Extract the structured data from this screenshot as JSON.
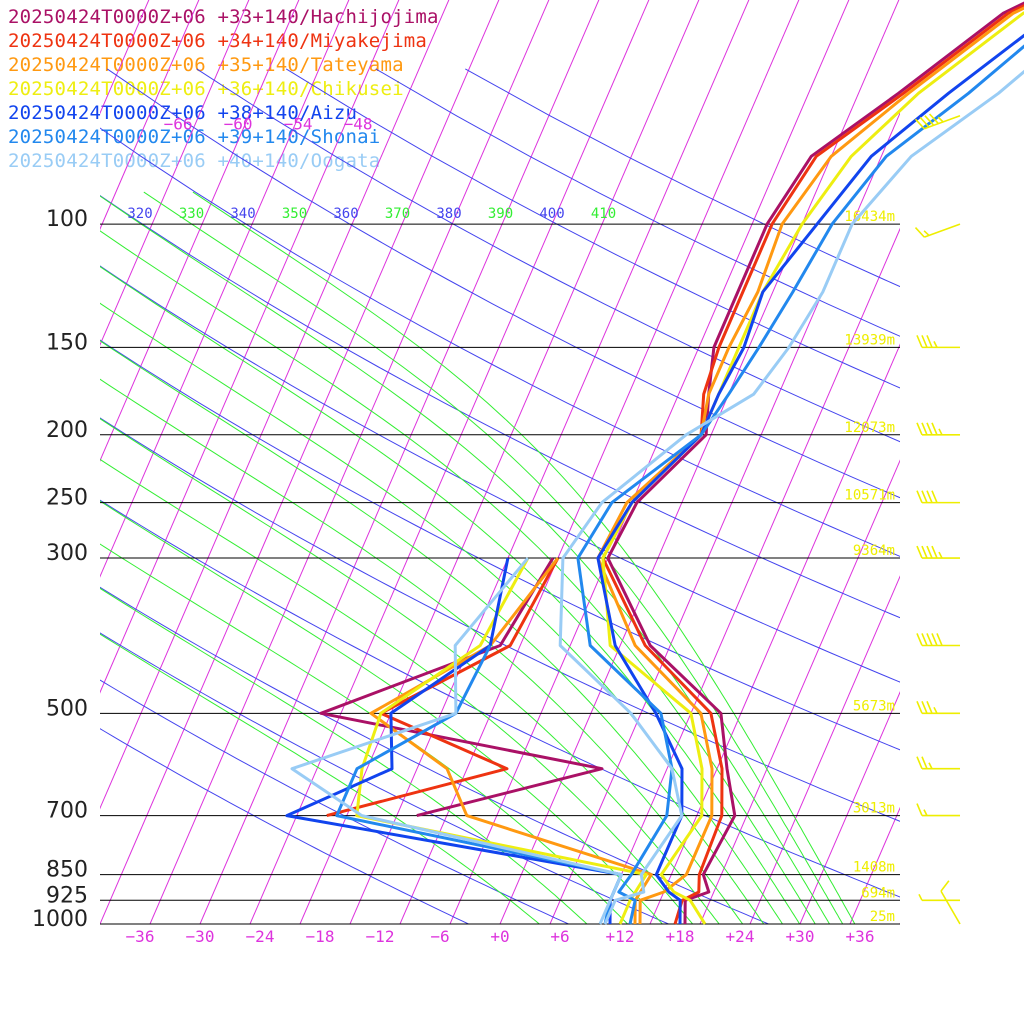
{
  "chart_data": {
    "type": "line",
    "colors": {
      "isotherm": "#dd33dd",
      "dry_adiabat": "#4444ee",
      "moist_adiabat": "#33ee33",
      "pressure_line": "#000000",
      "height_label": "#eeee00",
      "wind_barb": "#eeee00"
    },
    "xlim": [
      -40,
      40
    ],
    "temp_ticks": [
      "−36",
      "−30",
      "−24",
      "−18",
      "−12",
      "−6",
      "+0",
      "+6",
      "+12",
      "+18",
      "+24",
      "+30",
      "+36"
    ],
    "upper_temp_ticks": [
      "−66",
      "−60",
      "−54",
      "−48"
    ],
    "theta_labels": {
      "dry": [
        "320",
        "340",
        "360",
        "380",
        "400"
      ],
      "moist": [
        "330",
        "350",
        "370",
        "390",
        "410"
      ]
    },
    "pressure_levels": [
      {
        "p": 100,
        "label": "100",
        "height": "16434m"
      },
      {
        "p": 150,
        "label": "150",
        "height": "13939m"
      },
      {
        "p": 200,
        "label": "200",
        "height": "12073m"
      },
      {
        "p": 250,
        "label": "250",
        "height": "10571m"
      },
      {
        "p": 300,
        "label": "300",
        "height": "9364m"
      },
      {
        "p": 500,
        "label": "500",
        "height": "5673m"
      },
      {
        "p": 700,
        "label": "700",
        "height": "3013m"
      },
      {
        "p": 850,
        "label": "850",
        "height": "1408m"
      },
      {
        "p": 925,
        "label": "925",
        "height": "694m"
      },
      {
        "p": 1000,
        "label": "1000",
        "height": "25m"
      }
    ],
    "series": [
      {
        "name": "20250424T0000Z+06 +33+140/Hachijojima",
        "color": "#aa1166",
        "temperature": [
          [
            1000,
            18.5
          ],
          [
            925,
            17.5
          ],
          [
            900,
            19.5
          ],
          [
            850,
            18.2
          ],
          [
            700,
            18.8
          ],
          [
            600,
            16
          ],
          [
            500,
            13
          ],
          [
            400,
            3
          ],
          [
            300,
            -5
          ],
          [
            250,
            -4.5
          ],
          [
            200,
            -0.5
          ],
          [
            175,
            -2
          ],
          [
            150,
            -3.5
          ],
          [
            125,
            -3.5
          ],
          [
            100,
            -3.5
          ],
          [
            80,
            -2
          ],
          [
            65,
            4
          ],
          [
            50,
            11
          ],
          [
            40,
            22
          ]
        ],
        "dewpoint": [
          [
            700,
            -13
          ],
          [
            600,
            3.5
          ],
          [
            500,
            -27
          ],
          [
            400,
            -12
          ],
          [
            300,
            -10.5
          ]
        ]
      },
      {
        "name": "20250424T0000Z+06 +34+140/Miyakejima",
        "color": "#ee3311",
        "temperature": [
          [
            1000,
            17.5
          ],
          [
            925,
            17.2
          ],
          [
            900,
            18.5
          ],
          [
            850,
            17.8
          ],
          [
            700,
            17.5
          ],
          [
            600,
            15.5
          ],
          [
            500,
            12
          ],
          [
            400,
            2.5
          ],
          [
            300,
            -5.5
          ],
          [
            250,
            -5
          ],
          [
            200,
            -1
          ],
          [
            175,
            -2.5
          ],
          [
            150,
            -3
          ],
          [
            125,
            -3
          ],
          [
            100,
            -3
          ],
          [
            80,
            -1.5
          ],
          [
            65,
            4.5
          ],
          [
            50,
            11.5
          ],
          [
            40,
            22.5
          ]
        ],
        "dewpoint": [
          [
            700,
            -22
          ],
          [
            600,
            -6
          ],
          [
            500,
            -21
          ],
          [
            400,
            -11
          ],
          [
            300,
            -10
          ]
        ]
      },
      {
        "name": "20250424T0000Z+06 +35+140/Tateyama",
        "color": "#ff9911",
        "temperature": [
          [
            1000,
            14
          ],
          [
            925,
            13
          ],
          [
            900,
            15
          ],
          [
            850,
            16.5
          ],
          [
            700,
            16.5
          ],
          [
            600,
            14.5
          ],
          [
            500,
            11
          ],
          [
            400,
            1.5
          ],
          [
            300,
            -6
          ],
          [
            250,
            -5.5
          ],
          [
            200,
            -1
          ],
          [
            175,
            -2
          ],
          [
            150,
            -2
          ],
          [
            125,
            -1.5
          ],
          [
            100,
            -2
          ],
          [
            80,
            0
          ],
          [
            65,
            5
          ],
          [
            50,
            12
          ],
          [
            40,
            23
          ]
        ],
        "dewpoint": [
          [
            1000,
            13.5
          ],
          [
            925,
            12.5
          ],
          [
            850,
            13
          ],
          [
            700,
            -8
          ],
          [
            600,
            -12
          ],
          [
            500,
            -22
          ],
          [
            400,
            -13
          ],
          [
            300,
            -10
          ]
        ]
      },
      {
        "name": "20250424T0000Z+06 +36+140/Chikusei",
        "color": "#eeee11",
        "temperature": [
          [
            1000,
            20.5
          ],
          [
            925,
            18
          ],
          [
            900,
            16
          ],
          [
            850,
            14
          ],
          [
            700,
            15.5
          ],
          [
            600,
            13.5
          ],
          [
            500,
            10
          ],
          [
            400,
            -1
          ],
          [
            300,
            -5.5
          ],
          [
            250,
            -5
          ],
          [
            200,
            -1
          ],
          [
            175,
            -1
          ],
          [
            150,
            -1
          ],
          [
            125,
            -1
          ],
          [
            100,
            0
          ],
          [
            80,
            2
          ],
          [
            65,
            6
          ],
          [
            50,
            13
          ],
          [
            40,
            24
          ]
        ],
        "dewpoint": [
          [
            1000,
            12
          ],
          [
            925,
            12
          ],
          [
            850,
            12.5
          ],
          [
            700,
            -19
          ],
          [
            600,
            -20.5
          ],
          [
            500,
            -21
          ],
          [
            400,
            -14
          ],
          [
            300,
            -13
          ]
        ]
      },
      {
        "name": "20250424T0000Z+06 +38+140/Aizu",
        "color": "#1144ee",
        "temperature": [
          [
            1000,
            18
          ],
          [
            925,
            17
          ],
          [
            900,
            15.5
          ],
          [
            850,
            13.5
          ],
          [
            700,
            13.5
          ],
          [
            600,
            11.5
          ],
          [
            500,
            6.5
          ],
          [
            400,
            -0.5
          ],
          [
            300,
            -6
          ],
          [
            250,
            -5
          ],
          [
            200,
            -1
          ],
          [
            175,
            -1
          ],
          [
            150,
            -0.5
          ],
          [
            125,
            -1
          ],
          [
            100,
            1.5
          ],
          [
            80,
            4
          ],
          [
            65,
            9
          ],
          [
            50,
            16
          ],
          [
            40,
            26
          ]
        ],
        "dewpoint": [
          [
            1000,
            11
          ],
          [
            925,
            10
          ],
          [
            850,
            10
          ],
          [
            700,
            -26
          ],
          [
            600,
            -17.5
          ],
          [
            500,
            -20
          ],
          [
            400,
            -13
          ],
          [
            300,
            -15
          ]
        ]
      },
      {
        "name": "20250424T0000Z+06 +39+140/Shonai",
        "color": "#2288ee",
        "temperature": [
          [
            1000,
            13
          ],
          [
            925,
            12.5
          ],
          [
            900,
            10.5
          ],
          [
            850,
            11
          ],
          [
            700,
            12
          ],
          [
            600,
            10.5
          ],
          [
            500,
            7
          ],
          [
            400,
            -3
          ],
          [
            300,
            -8
          ],
          [
            250,
            -7
          ],
          [
            200,
            -1
          ],
          [
            175,
            0
          ],
          [
            150,
            1
          ],
          [
            125,
            2
          ],
          [
            100,
            3
          ],
          [
            80,
            5.5
          ],
          [
            65,
            11
          ],
          [
            50,
            17
          ],
          [
            40,
            27
          ]
        ],
        "dewpoint": [
          [
            1000,
            10.5
          ],
          [
            925,
            10
          ],
          [
            850,
            10
          ],
          [
            700,
            -21
          ],
          [
            600,
            -21
          ],
          [
            500,
            -13.5
          ],
          [
            400,
            -13
          ]
        ]
      },
      {
        "name": "20250424T0000Z+06 +40+140/Oogata",
        "color": "#99ccf5",
        "temperature": [
          [
            1000,
            10.5
          ],
          [
            925,
            10.5
          ],
          [
            900,
            13
          ],
          [
            850,
            12
          ],
          [
            700,
            13.5
          ],
          [
            600,
            10.5
          ],
          [
            500,
            4
          ],
          [
            400,
            -6
          ],
          [
            300,
            -9.5
          ],
          [
            250,
            -8
          ],
          [
            200,
            -2.5
          ],
          [
            175,
            2.5
          ],
          [
            150,
            4
          ],
          [
            125,
            5
          ],
          [
            100,
            5
          ],
          [
            80,
            8
          ],
          [
            65,
            14
          ],
          [
            50,
            20
          ],
          [
            40,
            29
          ]
        ],
        "dewpoint": [
          [
            1000,
            10
          ],
          [
            925,
            10
          ],
          [
            850,
            10
          ],
          [
            700,
            -18.5
          ],
          [
            600,
            -27.5
          ],
          [
            500,
            -13.5
          ],
          [
            400,
            -16.5
          ],
          [
            300,
            -13
          ]
        ]
      }
    ],
    "wind_barbs": [
      {
        "p": 1000,
        "direction_deg": 330,
        "speed_kt": 10
      },
      {
        "p": 925,
        "direction_deg": 270,
        "speed_kt": 5
      },
      {
        "p": 700,
        "direction_deg": 270,
        "speed_kt": 15
      },
      {
        "p": 600,
        "direction_deg": 270,
        "speed_kt": 25
      },
      {
        "p": 500,
        "direction_deg": 270,
        "speed_kt": 35
      },
      {
        "p": 400,
        "direction_deg": 270,
        "speed_kt": 50
      },
      {
        "p": 300,
        "direction_deg": 270,
        "speed_kt": 45
      },
      {
        "p": 250,
        "direction_deg": 270,
        "speed_kt": 40
      },
      {
        "p": 200,
        "direction_deg": 270,
        "speed_kt": 45
      },
      {
        "p": 150,
        "direction_deg": 270,
        "speed_kt": 35
      },
      {
        "p": 100,
        "direction_deg": 250,
        "speed_kt": 15
      },
      {
        "p": 70,
        "direction_deg": 250,
        "speed_kt": 45
      },
      {
        "p": 45,
        "direction_deg": 250,
        "speed_kt": 10
      }
    ]
  }
}
